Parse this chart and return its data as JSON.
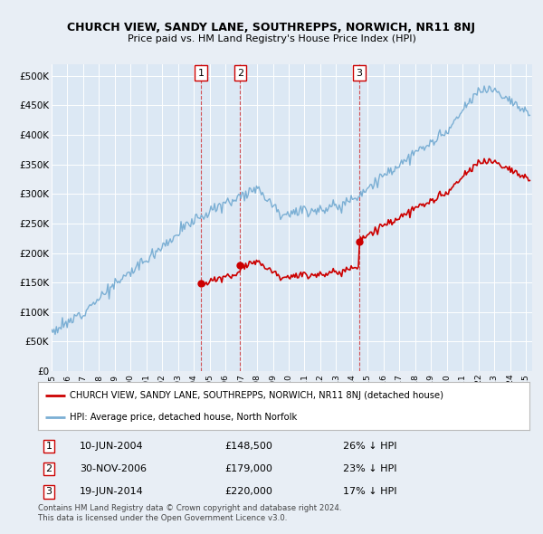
{
  "title": "CHURCH VIEW, SANDY LANE, SOUTHREPPS, NORWICH, NR11 8NJ",
  "subtitle": "Price paid vs. HM Land Registry's House Price Index (HPI)",
  "sale_color": "#cc0000",
  "hpi_color": "#7bafd4",
  "sale_label": "CHURCH VIEW, SANDY LANE, SOUTHREPPS, NORWICH, NR11 8NJ (detached house)",
  "hpi_label": "HPI: Average price, detached house, North Norfolk",
  "transactions": [
    {
      "num": 1,
      "date": "10-JUN-2004",
      "x": 2004.44,
      "price": 148500,
      "pct": "26%"
    },
    {
      "num": 2,
      "date": "30-NOV-2006",
      "x": 2006.92,
      "price": 179000,
      "pct": "23%"
    },
    {
      "num": 3,
      "date": "19-JUN-2014",
      "x": 2014.46,
      "price": 220000,
      "pct": "17%"
    }
  ],
  "footnote1": "Contains HM Land Registry data © Crown copyright and database right 2024.",
  "footnote2": "This data is licensed under the Open Government Licence v3.0.",
  "bg_color": "#e8eef5",
  "plot_bg": "#dce8f4",
  "yticks": [
    0,
    50000,
    100000,
    150000,
    200000,
    250000,
    300000,
    350000,
    400000,
    450000,
    500000
  ],
  "ytick_labels": [
    "£0",
    "£50K",
    "£100K",
    "£150K",
    "£200K",
    "£250K",
    "£300K",
    "£350K",
    "£400K",
    "£450K",
    "£500K"
  ],
  "xlim_start": 1995.0,
  "xlim_end": 2025.4,
  "ylim": [
    0,
    520000
  ]
}
